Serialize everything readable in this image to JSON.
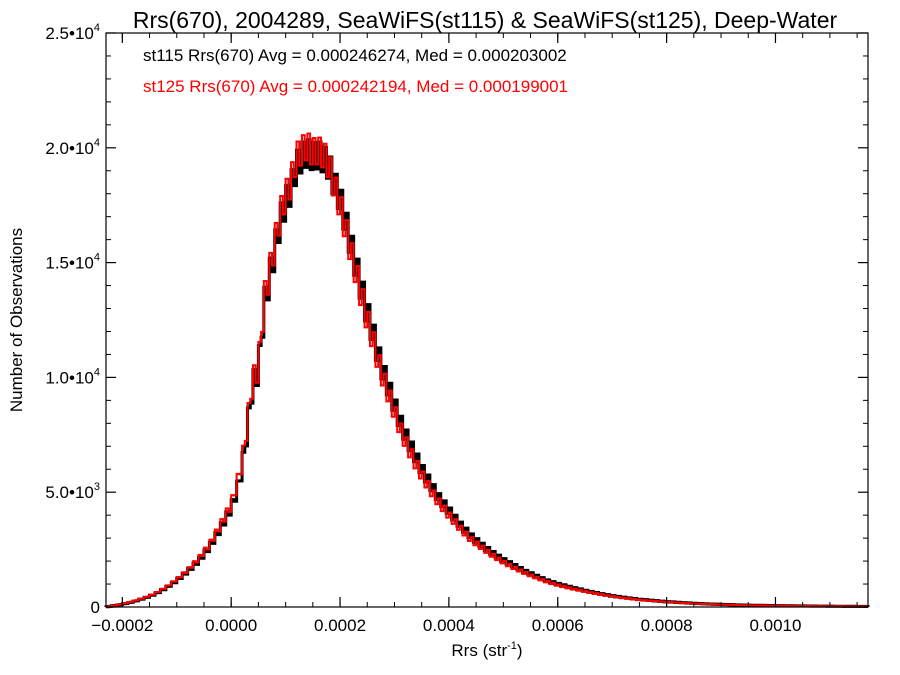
{
  "chart_data": {
    "type": "histogram",
    "title": "Rrs(670), 2004289, SeaWiFS(st115) & SeaWiFS(st125), Deep-Water",
    "xlabel": "Rrs (str",
    "xlabel_sup": "-1",
    "xlabel_close": ")",
    "ylabel": "Number of Observations",
    "xlim": [
      -0.00023,
      0.00117
    ],
    "ylim": [
      0,
      25000
    ],
    "grid": false,
    "x_ticks": [
      {
        "value": -0.0002,
        "label": "-0.0002"
      },
      {
        "value": 0.0,
        "label": "0.0000"
      },
      {
        "value": 0.0002,
        "label": "0.0002"
      },
      {
        "value": 0.0004,
        "label": "0.0004"
      },
      {
        "value": 0.0006,
        "label": "0.0006"
      },
      {
        "value": 0.0008,
        "label": "0.0008"
      },
      {
        "value": 0.001,
        "label": "0.0010"
      }
    ],
    "y_ticks": [
      {
        "value": 0,
        "mant": "0",
        "exp": ""
      },
      {
        "value": 5000,
        "mant": "5.0•10",
        "exp": "3"
      },
      {
        "value": 10000,
        "mant": "1.0•10",
        "exp": "4"
      },
      {
        "value": 15000,
        "mant": "1.5•10",
        "exp": "4"
      },
      {
        "value": 20000,
        "mant": "2.0•10",
        "exp": "4"
      },
      {
        "value": 25000,
        "mant": "2.5•10",
        "exp": "4"
      }
    ],
    "annotations": [
      {
        "text": "st115 Rrs(670) Avg = 0.000246274, Med = 0.000203002",
        "color": "#000000"
      },
      {
        "text": "st125 Rrs(670) Avg = 0.000242194, Med = 0.000199001",
        "color": "#ff0000"
      }
    ],
    "bin_width": 5e-06,
    "series": [
      {
        "name": "st115",
        "color": "#000000",
        "points": [
          [
            -0.00023,
            0
          ],
          [
            -0.0002,
            120
          ],
          [
            -0.00018,
            230
          ],
          [
            -0.00016,
            380
          ],
          [
            -0.00014,
            560
          ],
          [
            -0.00012,
            820
          ],
          [
            -0.0001,
            1150
          ],
          [
            -8e-05,
            1550
          ],
          [
            -6e-05,
            2000
          ],
          [
            -4e-05,
            2600
          ],
          [
            -2e-05,
            3400
          ],
          [
            0.0,
            4300
          ],
          [
            1e-05,
            5000
          ],
          [
            2e-05,
            6000
          ],
          [
            3e-05,
            7800
          ],
          [
            4e-05,
            9800
          ],
          [
            5e-05,
            10200
          ],
          [
            6e-05,
            13000
          ],
          [
            7e-05,
            14300
          ],
          [
            8e-05,
            15500
          ],
          [
            9e-05,
            16800
          ],
          [
            0.0001,
            17600
          ],
          [
            0.00011,
            18200
          ],
          [
            0.00012,
            19200
          ],
          [
            0.00013,
            19600
          ],
          [
            0.00014,
            19800
          ],
          [
            0.00015,
            19600
          ],
          [
            0.00016,
            19700
          ],
          [
            0.00017,
            19500
          ],
          [
            0.00018,
            19200
          ],
          [
            0.00019,
            18400
          ],
          [
            0.0002,
            17800
          ],
          [
            0.00021,
            16800
          ],
          [
            0.00022,
            15800
          ],
          [
            0.00023,
            14800
          ],
          [
            0.00024,
            13800
          ],
          [
            0.00025,
            12800
          ],
          [
            0.00026,
            12000
          ],
          [
            0.00027,
            11000
          ],
          [
            0.00028,
            10200
          ],
          [
            0.00029,
            9500
          ],
          [
            0.0003,
            8800
          ],
          [
            0.00031,
            8100
          ],
          [
            0.00032,
            7500
          ],
          [
            0.00033,
            7000
          ],
          [
            0.00034,
            6500
          ],
          [
            0.00035,
            6000
          ],
          [
            0.00036,
            5600
          ],
          [
            0.00037,
            5200
          ],
          [
            0.00038,
            4800
          ],
          [
            0.0004,
            4200
          ],
          [
            0.00042,
            3600
          ],
          [
            0.00044,
            3100
          ],
          [
            0.00046,
            2700
          ],
          [
            0.00048,
            2350
          ],
          [
            0.0005,
            2050
          ],
          [
            0.00052,
            1800
          ],
          [
            0.00054,
            1550
          ],
          [
            0.00056,
            1350
          ],
          [
            0.00058,
            1150
          ],
          [
            0.0006,
            1000
          ],
          [
            0.00063,
            820
          ],
          [
            0.00066,
            660
          ],
          [
            0.0007,
            480
          ],
          [
            0.00075,
            330
          ],
          [
            0.0008,
            230
          ],
          [
            0.00085,
            160
          ],
          [
            0.0009,
            110
          ],
          [
            0.00095,
            80
          ],
          [
            0.001,
            60
          ],
          [
            0.00105,
            45
          ],
          [
            0.0011,
            35
          ],
          [
            0.00117,
            25
          ]
        ]
      },
      {
        "name": "st125",
        "color": "#ff0000",
        "points": [
          [
            -0.00023,
            0
          ],
          [
            -0.0002,
            130
          ],
          [
            -0.00018,
            250
          ],
          [
            -0.00016,
            400
          ],
          [
            -0.00014,
            590
          ],
          [
            -0.00012,
            860
          ],
          [
            -0.0001,
            1200
          ],
          [
            -8e-05,
            1600
          ],
          [
            -6e-05,
            2100
          ],
          [
            -4e-05,
            2700
          ],
          [
            -2e-05,
            3550
          ],
          [
            0.0,
            4450
          ],
          [
            1e-05,
            5300
          ],
          [
            2e-05,
            6300
          ],
          [
            3e-05,
            8000
          ],
          [
            4e-05,
            10000
          ],
          [
            5e-05,
            10300
          ],
          [
            6e-05,
            13300
          ],
          [
            7e-05,
            14500
          ],
          [
            8e-05,
            15800
          ],
          [
            9e-05,
            17100
          ],
          [
            0.0001,
            17900
          ],
          [
            0.00011,
            18500
          ],
          [
            0.00012,
            19600
          ],
          [
            0.00013,
            19900
          ],
          [
            0.00014,
            20100
          ],
          [
            0.00015,
            19800
          ],
          [
            0.00016,
            19900
          ],
          [
            0.00017,
            19700
          ],
          [
            0.00018,
            19200
          ],
          [
            0.00019,
            18300
          ],
          [
            0.0002,
            17500
          ],
          [
            0.00021,
            16500
          ],
          [
            0.00022,
            15500
          ],
          [
            0.00023,
            14500
          ],
          [
            0.00024,
            13500
          ],
          [
            0.00025,
            12500
          ],
          [
            0.00026,
            11700
          ],
          [
            0.00027,
            10700
          ],
          [
            0.00028,
            9900
          ],
          [
            0.00029,
            9200
          ],
          [
            0.0003,
            8500
          ],
          [
            0.00031,
            7800
          ],
          [
            0.00032,
            7200
          ],
          [
            0.00033,
            6700
          ],
          [
            0.00034,
            6200
          ],
          [
            0.00035,
            5750
          ],
          [
            0.00036,
            5350
          ],
          [
            0.00037,
            4950
          ],
          [
            0.00038,
            4600
          ],
          [
            0.0004,
            4000
          ],
          [
            0.00042,
            3450
          ],
          [
            0.00044,
            2950
          ],
          [
            0.00046,
            2600
          ],
          [
            0.00048,
            2250
          ],
          [
            0.0005,
            1950
          ],
          [
            0.00052,
            1700
          ],
          [
            0.00054,
            1480
          ],
          [
            0.00056,
            1280
          ],
          [
            0.00058,
            1100
          ],
          [
            0.0006,
            950
          ],
          [
            0.00063,
            780
          ],
          [
            0.00066,
            630
          ],
          [
            0.0007,
            460
          ],
          [
            0.00075,
            310
          ],
          [
            0.0008,
            220
          ],
          [
            0.00085,
            150
          ],
          [
            0.0009,
            105
          ],
          [
            0.00095,
            75
          ],
          [
            0.001,
            55
          ],
          [
            0.00105,
            42
          ],
          [
            0.0011,
            32
          ],
          [
            0.00117,
            22
          ]
        ]
      }
    ]
  }
}
